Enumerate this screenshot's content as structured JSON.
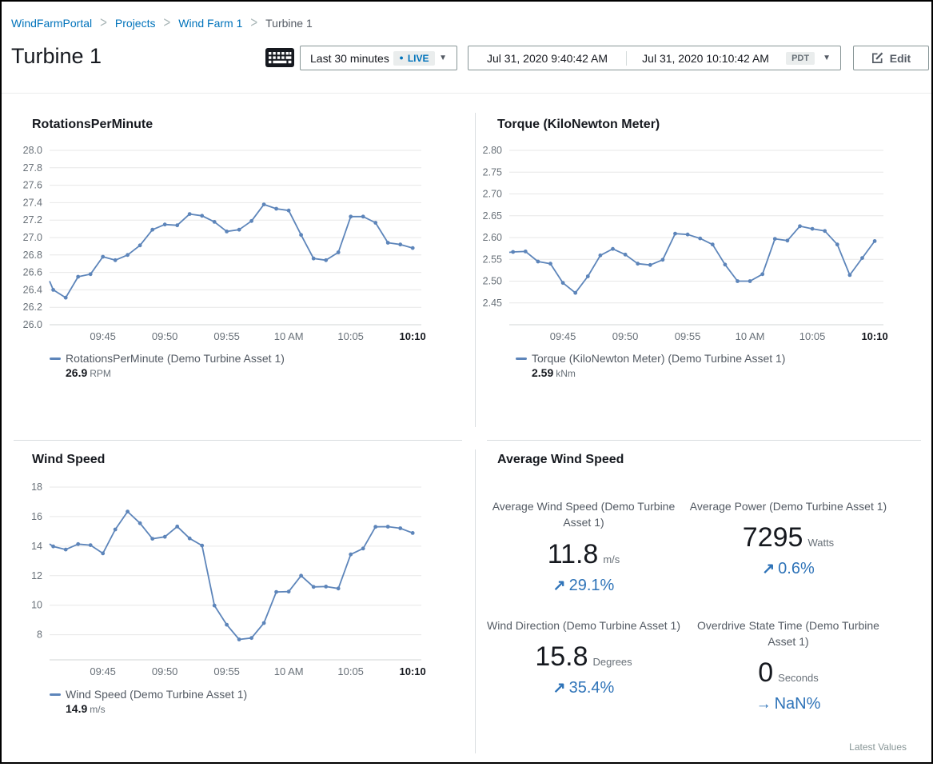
{
  "colors": {
    "link": "#0073bb",
    "line": "#5d85ba",
    "grid": "#e7e7e7",
    "baseline": "#d2d6d6",
    "axis_text": "#687078",
    "axis_text_bold": "#16191f",
    "trend": "#2e73b8"
  },
  "breadcrumb": {
    "items": [
      {
        "label": "WindFarmPortal"
      },
      {
        "label": "Projects"
      },
      {
        "label": "Wind Farm 1"
      },
      {
        "label": "Turbine 1"
      }
    ]
  },
  "header": {
    "title": "Turbine 1",
    "time_range_label": "Last 30 minutes",
    "live_label": "LIVE",
    "live_dot": "●",
    "date_start": "Jul 31, 2020 9:40:42 AM",
    "date_end": "Jul 31, 2020 10:10:42 AM",
    "timezone": "PDT",
    "edit_label": "Edit",
    "caret": "▼"
  },
  "charts": [
    {
      "type": "line",
      "title": "RotationsPerMinute",
      "legend_label": "RotationsPerMinute (Demo Turbine Asset 1)",
      "latest_value": "26.9",
      "unit": "RPM",
      "ymin": 26.0,
      "ymax": 28.0,
      "yticks": [
        {
          "label": "28.0",
          "v": 28.0
        },
        {
          "label": "27.8",
          "v": 27.8
        },
        {
          "label": "27.6",
          "v": 27.6
        },
        {
          "label": "27.4",
          "v": 27.4
        },
        {
          "label": "27.2",
          "v": 27.2
        },
        {
          "label": "27.0",
          "v": 27.0
        },
        {
          "label": "26.8",
          "v": 26.8
        },
        {
          "label": "26.6",
          "v": 26.6
        },
        {
          "label": "26.4",
          "v": 26.4
        },
        {
          "label": "26.2",
          "v": 26.2
        },
        {
          "label": "26.0",
          "v": 26.0
        }
      ],
      "xticks": [
        {
          "label": "09:45",
          "min": 4.3
        },
        {
          "label": "09:50",
          "min": 9.3
        },
        {
          "label": "09:55",
          "min": 14.3
        },
        {
          "label": "10 AM",
          "min": 19.3
        },
        {
          "label": "10:05",
          "min": 24.3
        },
        {
          "label": "10:10",
          "min": 29.3,
          "bold": true
        }
      ],
      "window_min": 30,
      "first_offset_min": 0.3,
      "step_min": 1,
      "edge_value": 26.5,
      "values": [
        26.4,
        26.31,
        26.55,
        26.58,
        26.78,
        26.74,
        26.8,
        26.91,
        27.09,
        27.15,
        27.14,
        27.27,
        27.25,
        27.18,
        27.07,
        27.09,
        27.19,
        27.38,
        27.33,
        27.31,
        27.03,
        26.76,
        26.74,
        26.83,
        27.24,
        27.24,
        27.17,
        26.94,
        26.92,
        26.88
      ]
    },
    {
      "type": "line",
      "title": "Torque (KiloNewton Meter)",
      "legend_label": "Torque (KiloNewton Meter) (Demo Turbine Asset 1)",
      "latest_value": "2.59",
      "unit": "kNm",
      "ymin": 2.4,
      "ymax": 2.8,
      "yticks": [
        {
          "label": "2.80",
          "v": 2.8
        },
        {
          "label": "2.75",
          "v": 2.75
        },
        {
          "label": "2.70",
          "v": 2.7
        },
        {
          "label": "2.65",
          "v": 2.65
        },
        {
          "label": "2.60",
          "v": 2.6
        },
        {
          "label": "2.55",
          "v": 2.55
        },
        {
          "label": "2.50",
          "v": 2.5
        },
        {
          "label": "2.45",
          "v": 2.45
        }
      ],
      "xticks": [
        {
          "label": "09:45",
          "min": 4.3
        },
        {
          "label": "09:50",
          "min": 9.3
        },
        {
          "label": "09:55",
          "min": 14.3
        },
        {
          "label": "10 AM",
          "min": 19.3
        },
        {
          "label": "10:05",
          "min": 24.3
        },
        {
          "label": "10:10",
          "min": 29.3,
          "bold": true
        }
      ],
      "window_min": 30,
      "first_offset_min": 0.3,
      "step_min": 1,
      "edge_value": 2.566,
      "values": [
        2.567,
        2.568,
        2.545,
        2.54,
        2.496,
        2.473,
        2.511,
        2.559,
        2.574,
        2.561,
        2.54,
        2.537,
        2.549,
        2.609,
        2.607,
        2.598,
        2.584,
        2.538,
        2.5,
        2.5,
        2.516,
        2.597,
        2.593,
        2.626,
        2.62,
        2.615,
        2.584,
        2.514,
        2.553,
        2.592
      ]
    },
    {
      "type": "line",
      "title": "Wind Speed",
      "legend_label": "Wind Speed (Demo Turbine Asset 1)",
      "latest_value": "14.9",
      "unit": "m/s",
      "ymin": 6.3,
      "ymax": 18,
      "yticks": [
        {
          "label": "18",
          "v": 18
        },
        {
          "label": "16",
          "v": 16
        },
        {
          "label": "14",
          "v": 14
        },
        {
          "label": "12",
          "v": 12
        },
        {
          "label": "10",
          "v": 10
        },
        {
          "label": "8",
          "v": 8
        }
      ],
      "xticks": [
        {
          "label": "09:45",
          "min": 4.3
        },
        {
          "label": "09:50",
          "min": 9.3
        },
        {
          "label": "09:55",
          "min": 14.3
        },
        {
          "label": "10 AM",
          "min": 19.3
        },
        {
          "label": "10:05",
          "min": 24.3
        },
        {
          "label": "10:10",
          "min": 29.3,
          "bold": true
        }
      ],
      "window_min": 30,
      "first_offset_min": 0.3,
      "step_min": 1,
      "edge_value": 14.15,
      "values": [
        13.98,
        13.77,
        14.14,
        14.07,
        13.51,
        15.13,
        16.34,
        15.55,
        14.5,
        14.63,
        15.33,
        14.52,
        14.04,
        9.98,
        8.68,
        7.68,
        7.78,
        8.79,
        10.9,
        10.92,
        12.0,
        11.24,
        11.26,
        11.13,
        13.44,
        13.84,
        15.31,
        15.32,
        15.21,
        14.89
      ]
    }
  ],
  "kpi_panel": {
    "title": "Average Wind Speed",
    "footer": "Latest Values",
    "kpis": [
      {
        "label": "Average Wind Speed (Demo Turbine Asset 1)",
        "value": "11.8",
        "unit": "m/s",
        "arrow": "↗",
        "trend": "29.1%"
      },
      {
        "label": "Average Power (Demo Turbine Asset 1)",
        "value": "7295",
        "unit": "Watts",
        "arrow": "↗",
        "trend": "0.6%"
      },
      {
        "label": "Wind Direction (Demo Turbine Asset 1)",
        "value": "15.8",
        "unit": "Degrees",
        "arrow": "↗",
        "trend": "35.4%"
      },
      {
        "label": "Overdrive State Time (Demo Turbine Asset 1)",
        "value": "0",
        "unit": "Seconds",
        "arrow": "→",
        "trend": "NaN%"
      }
    ]
  }
}
